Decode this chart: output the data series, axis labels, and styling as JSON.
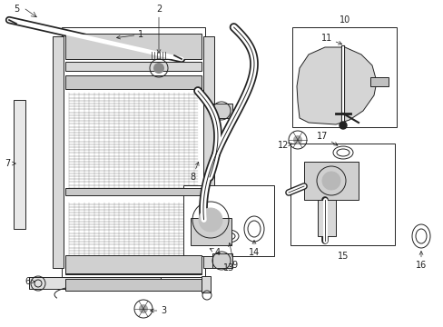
{
  "bg_color": "#ffffff",
  "line_color": "#222222",
  "fig_width": 4.89,
  "fig_height": 3.6,
  "dpi": 100,
  "lw": 0.7,
  "alw": 0.5,
  "fs": 7.0
}
